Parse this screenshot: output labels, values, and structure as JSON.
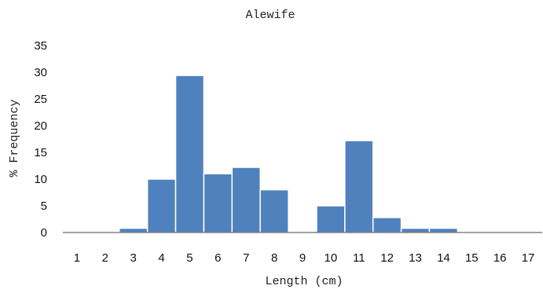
{
  "chart_data": {
    "type": "bar",
    "title": "Alewife",
    "xlabel": "Length (cm)",
    "ylabel": "% Frequency",
    "categories": [
      "1",
      "2",
      "3",
      "4",
      "5",
      "6",
      "7",
      "8",
      "9",
      "10",
      "11",
      "12",
      "13",
      "14",
      "15",
      "16",
      "17"
    ],
    "values": [
      0,
      0,
      0.8,
      10,
      29.4,
      11,
      12.2,
      8,
      0,
      5,
      17.2,
      2.8,
      0.8,
      0.8,
      0,
      0,
      0
    ],
    "ylim": [
      0,
      35
    ],
    "yticks": [
      0,
      5,
      10,
      15,
      20,
      25,
      30,
      35
    ],
    "grid": false,
    "legend": "none",
    "bar_color": "#4f81bd"
  }
}
